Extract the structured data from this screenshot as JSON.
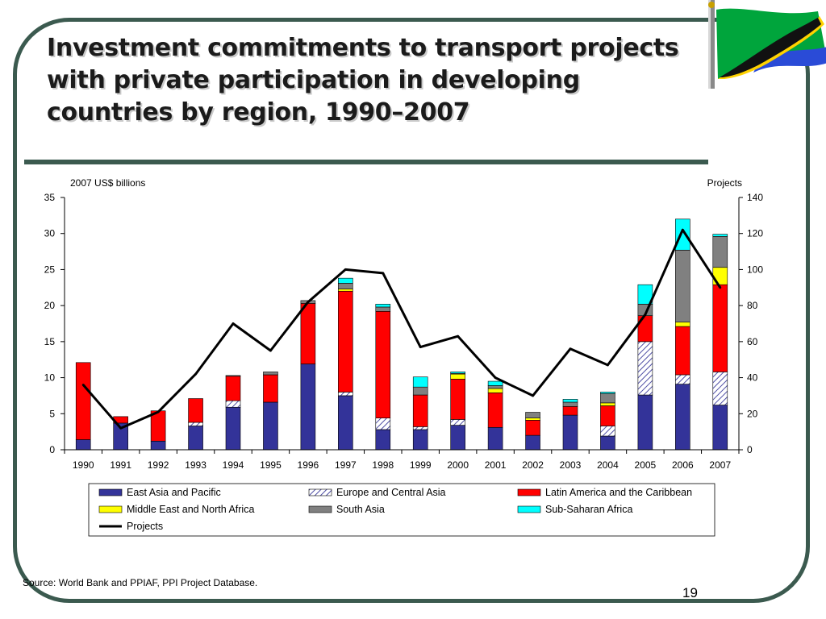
{
  "slide": {
    "title": "Investment commitments to transport projects with private participation in developing countries by region, 1990–2007",
    "source": "Source: World Bank and PPIAF, PPI Project Database.",
    "page_number": "19"
  },
  "chart_data": {
    "type": "bar",
    "stacked": true,
    "categories": [
      "1990",
      "1991",
      "1992",
      "1993",
      "1994",
      "1995",
      "1996",
      "1997",
      "1998",
      "1999",
      "2000",
      "2001",
      "2002",
      "2003",
      "2004",
      "2005",
      "2006",
      "2007"
    ],
    "ylabel_left": "2007 US$ billions",
    "ylabel_right": "Projects",
    "ylim_left": [
      0,
      35
    ],
    "yticks_left": [
      0,
      5,
      10,
      15,
      20,
      25,
      30,
      35
    ],
    "ylim_right": [
      0,
      140
    ],
    "yticks_right": [
      0,
      20,
      40,
      60,
      80,
      100,
      120,
      140
    ],
    "grid": false,
    "legend_position": "bottom",
    "series": [
      {
        "name": "East Asia and Pacific",
        "color": "#333399",
        "pattern": "solid",
        "values": [
          1.4,
          3.7,
          1.2,
          3.3,
          5.9,
          6.6,
          11.9,
          7.5,
          2.8,
          2.8,
          3.4,
          3.1,
          2.0,
          4.8,
          1.9,
          7.6,
          9.1,
          6.2
        ]
      },
      {
        "name": "Europe and Central Asia",
        "color": "#e0e4f4",
        "pattern": "hatch",
        "values": [
          0,
          0,
          0,
          0.5,
          0.9,
          0,
          0,
          0.5,
          1.6,
          0.4,
          0.8,
          0,
          0,
          0,
          1.4,
          7.4,
          1.3,
          4.6
        ]
      },
      {
        "name": "Latin America and the Caribbean",
        "color": "#ff0000",
        "pattern": "solid",
        "values": [
          10.7,
          0.9,
          4.2,
          3.3,
          3.4,
          3.8,
          8.4,
          14.0,
          14.8,
          4.4,
          5.6,
          4.8,
          2.1,
          1.2,
          2.8,
          3.6,
          6.7,
          12.1
        ]
      },
      {
        "name": "Middle East and North Africa",
        "color": "#ffff00",
        "pattern": "solid",
        "values": [
          0,
          0,
          0,
          0,
          0,
          0,
          0,
          0.3,
          0,
          0,
          0.7,
          0.6,
          0.3,
          0,
          0.4,
          0,
          0.6,
          2.4
        ]
      },
      {
        "name": "South Asia",
        "color": "#808080",
        "pattern": "solid",
        "values": [
          0,
          0,
          0,
          0,
          0.1,
          0.4,
          0.4,
          0.8,
          0.6,
          1.1,
          0.1,
          0.4,
          0.8,
          0.6,
          1.3,
          1.6,
          10.0,
          4.3
        ]
      },
      {
        "name": "Sub-Saharan Africa",
        "color": "#00ffff",
        "pattern": "solid",
        "values": [
          0,
          0,
          0,
          0,
          0,
          0,
          0,
          0.7,
          0.4,
          1.4,
          0.2,
          0.6,
          0,
          0.4,
          0.2,
          2.7,
          4.3,
          0.3
        ]
      },
      {
        "name": "Projects",
        "color": "#000000",
        "type": "line",
        "axis": "right",
        "values": [
          36,
          12,
          21,
          42,
          70,
          55,
          82,
          100,
          98,
          57,
          63,
          40,
          30,
          56,
          47,
          75,
          122,
          90
        ]
      }
    ]
  },
  "colors": {
    "frame": "#3b5a4f",
    "title_shadow": "#c9c9c9"
  },
  "icons": {
    "flag": "tanzania-flag-icon"
  }
}
